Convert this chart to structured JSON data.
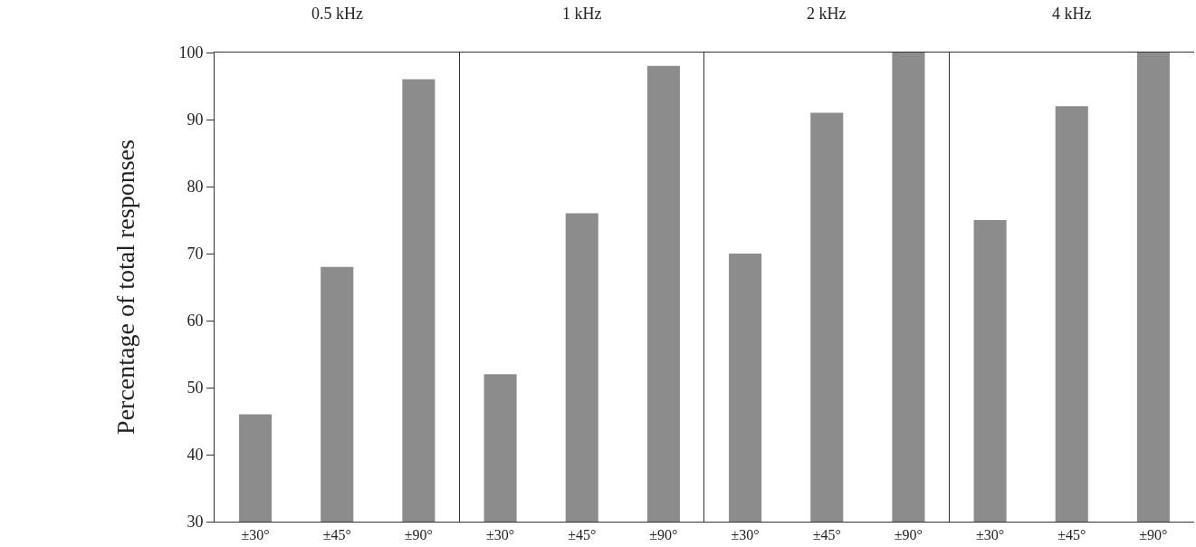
{
  "chart_data": [
    {
      "type": "bar",
      "title": "0.5 kHz",
      "ylabel": "Percentage of total responses",
      "categories": [
        "±30°",
        "±45°",
        "±90°"
      ],
      "values": [
        46,
        68,
        96
      ],
      "color": "#8c8c8c",
      "ylim": [
        30,
        100
      ],
      "yticks": [
        30,
        40,
        50,
        60,
        70,
        80,
        90,
        100
      ]
    },
    {
      "type": "bar",
      "title": "1 kHz",
      "categories": [
        "±30°",
        "±45°",
        "±90°"
      ],
      "values": [
        52,
        76,
        98
      ],
      "color": "#8c8c8c",
      "ylim": [
        30,
        100
      ],
      "tick_labels": "x"
    },
    {
      "type": "bar",
      "title": "2 kHz",
      "categories": [
        "±30°",
        "±45°",
        "±90°"
      ],
      "values": [
        70,
        91,
        100
      ],
      "color": "#8c8c8c",
      "ylim": [
        30,
        100
      ],
      "tick_labels": "x"
    },
    {
      "type": "bar",
      "title": "4 kHz",
      "categories": [
        "±30°",
        "±45°",
        "±90°"
      ],
      "values": [
        75,
        92,
        100
      ],
      "color": "#8c8c8c",
      "ylim": [
        30,
        100
      ],
      "tick_labels": "x"
    }
  ]
}
